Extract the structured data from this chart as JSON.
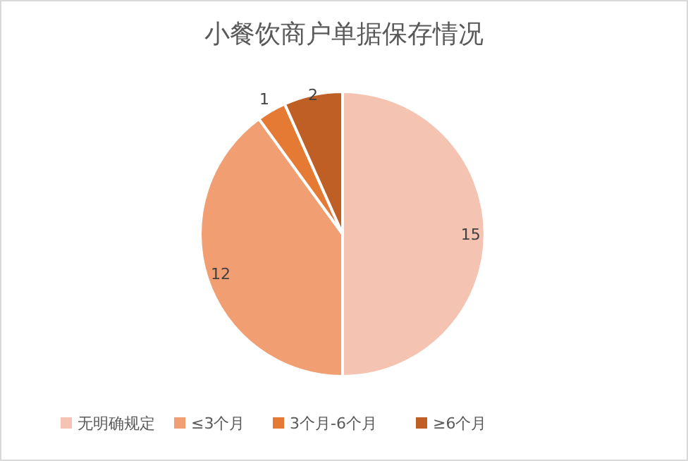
{
  "chart_data": {
    "type": "pie",
    "title": "小餐饮商户单据保存情况",
    "categories": [
      "无明确规定",
      "≤3个月",
      "3个月-6个月",
      "≥6个月"
    ],
    "values": [
      15,
      12,
      1,
      2
    ],
    "colors": [
      "#f5c3b1",
      "#f09e72",
      "#e57a34",
      "#c05f25"
    ],
    "data_labels": true,
    "legend": "bottom"
  }
}
